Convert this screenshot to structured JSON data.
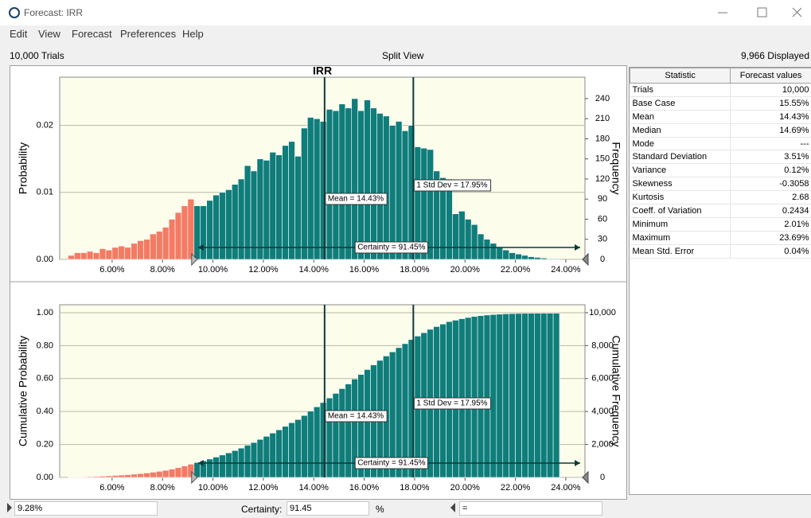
{
  "window": {
    "title": "Forecast: IRR"
  },
  "menu": [
    "Edit",
    "View",
    "Forecast",
    "Preferences",
    "Help"
  ],
  "toolbar": {
    "trials": "10,000 Trials",
    "view": "Split View",
    "displayed": "9,966 Displayed"
  },
  "charts": [
    {
      "type": "histogram",
      "title": "IRR",
      "ylabel": "Probability",
      "y2label": "Frequency",
      "axis": "y2",
      "color": "#0f7d7a",
      "lower_color": "#f47b63",
      "grid": true,
      "xlim": [
        3.92,
        24.76
      ],
      "xticks": [
        {
          "value": 6,
          "label": "6.00%"
        },
        {
          "value": 8,
          "label": "8.00%"
        },
        {
          "value": 10,
          "label": "10.00%"
        },
        {
          "value": 12,
          "label": "12.00%"
        },
        {
          "value": 14,
          "label": "14.00%"
        },
        {
          "value": 16,
          "label": "16.00%"
        },
        {
          "value": 18,
          "label": "18.00%"
        },
        {
          "value": 20,
          "label": "20.00%"
        },
        {
          "value": 22,
          "label": "22.00%"
        },
        {
          "value": 24,
          "label": "24.00%"
        }
      ],
      "ylim": [
        0,
        0.0272
      ],
      "yticks": [
        {
          "value": 0,
          "label": "0.00"
        },
        0.01,
        0.02
      ],
      "y2lim": [
        0,
        272
      ],
      "y2ticks": [
        0,
        30,
        60,
        90,
        120,
        150,
        180,
        210,
        240
      ],
      "bins": [
        4.25,
        4.5,
        4.75,
        5,
        5.25,
        5.5,
        5.75,
        6,
        6.25,
        6.5,
        6.75,
        7,
        7.25,
        7.5,
        7.75,
        8,
        8.25,
        8.5,
        8.75,
        9,
        9.25,
        9.5,
        9.75,
        10,
        10.25,
        10.5,
        10.75,
        11,
        11.25,
        11.5,
        11.75,
        12,
        12.25,
        12.5,
        12.75,
        13,
        13.25,
        13.5,
        13.75,
        14,
        14.25,
        14.5,
        14.75,
        15,
        15.25,
        15.5,
        15.75,
        16,
        16.25,
        16.5,
        16.75,
        17,
        17.25,
        17.5,
        17.75,
        18,
        18.25,
        18.5,
        18.75,
        19,
        19.25,
        19.5,
        19.75,
        20,
        20.25,
        20.5,
        20.75,
        21,
        21.25,
        21.5,
        21.75,
        22,
        22.25,
        22.5,
        22.75,
        23,
        23.25,
        23.5,
        23.75
      ],
      "values": [
        6,
        10,
        10,
        12,
        10,
        16,
        14,
        18,
        20,
        18,
        24,
        28,
        30,
        38,
        42,
        48,
        60,
        70,
        80,
        90,
        80,
        80,
        88,
        96,
        100,
        104,
        112,
        120,
        140,
        132,
        150,
        148,
        160,
        156,
        170,
        176,
        154,
        196,
        212,
        210,
        206,
        224,
        222,
        232,
        226,
        240,
        222,
        238,
        226,
        218,
        214,
        200,
        206,
        192,
        200,
        168,
        166,
        164,
        132,
        122,
        120,
        68,
        72,
        60,
        52,
        38,
        30,
        24,
        18,
        14,
        10,
        8,
        6,
        4,
        3,
        2,
        1,
        1
      ],
      "annotations": [
        {
          "x": 14.43,
          "label": "Mean = 14.43%"
        },
        {
          "x": 17.95,
          "label": "1 Std Dev = 17.95%"
        }
      ],
      "certainty": {
        "from": 9.28,
        "label": "Certainty = 91.45%"
      }
    },
    {
      "type": "histogram",
      "ylabel": "Cumulative Probability",
      "y2label": "Cumulative Frequency",
      "axis": "y2",
      "color": "#0f7d7a",
      "lower_color": "#f47b63",
      "grid": true,
      "xlim": [
        3.92,
        24.76
      ],
      "xticks": [
        {
          "value": 6,
          "label": "6.00%"
        },
        {
          "value": 8,
          "label": "8.00%"
        },
        {
          "value": 10,
          "label": "10.00%"
        },
        {
          "value": 12,
          "label": "12.00%"
        },
        {
          "value": 14,
          "label": "14.00%"
        },
        {
          "value": 16,
          "label": "16.00%"
        },
        {
          "value": 18,
          "label": "18.00%"
        },
        {
          "value": 20,
          "label": "20.00%"
        },
        {
          "value": 22,
          "label": "22.00%"
        },
        {
          "value": 24,
          "label": "24.00%"
        }
      ],
      "ylim": [
        0,
        1.048
      ],
      "yticks": [
        {
          "value": 0,
          "label": "0.00"
        },
        {
          "value": 0.2,
          "label": "0.20"
        },
        {
          "value": 0.4,
          "label": "0.40"
        },
        {
          "value": 0.6,
          "label": "0.60"
        },
        {
          "value": 0.8,
          "label": "0.80"
        },
        {
          "value": 1,
          "label": "1.00"
        }
      ],
      "y2lim": [
        0,
        10480
      ],
      "y2ticks": [
        0,
        {
          "value": 2000,
          "label": "2,000"
        },
        {
          "value": 4000,
          "label": "4,000"
        },
        {
          "value": 6000,
          "label": "6,000"
        },
        {
          "value": 8000,
          "label": "8,000"
        },
        {
          "value": 10000,
          "label": "10,000"
        }
      ],
      "bins": [
        4.25,
        4.5,
        4.75,
        5,
        5.25,
        5.5,
        5.75,
        6,
        6.25,
        6.5,
        6.75,
        7,
        7.25,
        7.5,
        7.75,
        8,
        8.25,
        8.5,
        8.75,
        9,
        9.25,
        9.5,
        9.75,
        10,
        10.25,
        10.5,
        10.75,
        11,
        11.25,
        11.5,
        11.75,
        12,
        12.25,
        12.5,
        12.75,
        13,
        13.25,
        13.5,
        13.75,
        14,
        14.25,
        14.5,
        14.75,
        15,
        15.25,
        15.5,
        15.75,
        16,
        16.25,
        16.5,
        16.75,
        17,
        17.25,
        17.5,
        17.75,
        18,
        18.25,
        18.5,
        18.75,
        19,
        19.25,
        19.5,
        19.75,
        20,
        20.25,
        20.5,
        20.75,
        21,
        21.25,
        21.5,
        21.75,
        22,
        22.25,
        22.5,
        22.75,
        23,
        23.25,
        23.5,
        23.75
      ],
      "values": [
        8,
        20,
        33,
        48,
        60,
        80,
        98,
        120,
        145,
        168,
        198,
        233,
        270,
        318,
        370,
        430,
        505,
        593,
        693,
        805,
        905,
        1005,
        1115,
        1235,
        1360,
        1490,
        1630,
        1780,
        1955,
        2120,
        2308,
        2493,
        2693,
        2888,
        3100,
        3320,
        3513,
        3758,
        4023,
        4285,
        4543,
        4823,
        5100,
        5390,
        5673,
        5973,
        6250,
        6548,
        6830,
        7103,
        7370,
        7620,
        7878,
        8118,
        8368,
        8578,
        8785,
        8990,
        9155,
        9308,
        9458,
        9543,
        9633,
        9708,
        9773,
        9820,
        9858,
        9888,
        9910,
        9928,
        9940,
        9950,
        9958,
        9961,
        9963,
        9964,
        9965,
        9966
      ],
      "annotations": [
        {
          "x": 14.43,
          "label": "Mean = 14.43%"
        },
        {
          "x": 17.95,
          "label": "1 Std Dev = 17.95%"
        }
      ],
      "certainty": {
        "from": 9.28,
        "label": "Certainty = 91.45%"
      }
    }
  ],
  "stats_table": {
    "columns": [
      "Statistic",
      "Forecast values"
    ],
    "rows": [
      [
        "Trials",
        "10,000"
      ],
      [
        "Base Case",
        "15.55%"
      ],
      [
        "Mean",
        "14.43%"
      ],
      [
        "Median",
        "14.69%"
      ],
      [
        "Mode",
        "---"
      ],
      [
        "Standard Deviation",
        "3.51%"
      ],
      [
        "Variance",
        "0.12%"
      ],
      [
        "Skewness",
        "-0.3058"
      ],
      [
        "Kurtosis",
        "2.68"
      ],
      [
        "Coeff. of Variation",
        "0.2434"
      ],
      [
        "Minimum",
        "2.01%"
      ],
      [
        "Maximum",
        "23.69%"
      ],
      [
        "Mean Std. Error",
        "0.04%"
      ]
    ]
  },
  "footer": {
    "lower": "9.28%",
    "certainty_label": "Certainty:",
    "certainty": "91.45",
    "unit": "%",
    "upper": "="
  }
}
